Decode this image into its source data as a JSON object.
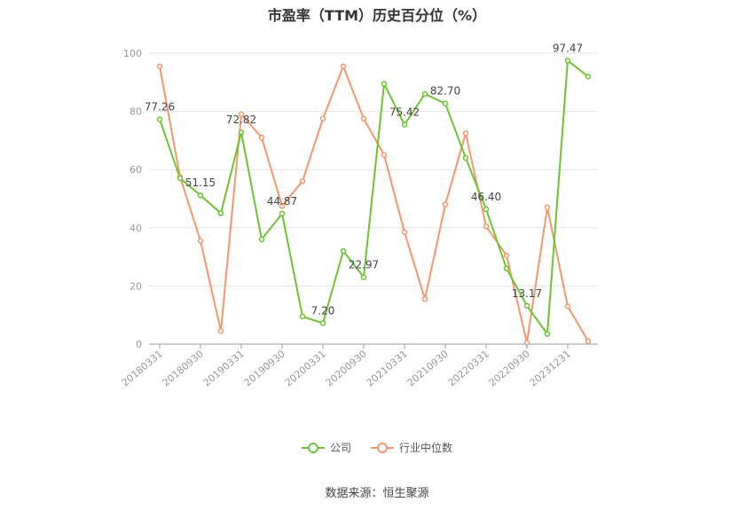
{
  "title": "市盈率（TTM）历史百分位（%）",
  "source": "数据来源：恒生聚源",
  "chart_data": {
    "type": "line",
    "title": "市盈率（TTM）历史百分位（%）",
    "ylim": [
      0,
      100
    ],
    "yticks": [
      0,
      20,
      40,
      60,
      80,
      100
    ],
    "x_tick_labels": [
      "20180331",
      "20180930",
      "20190331",
      "20190930",
      "20200331",
      "20200930",
      "20210331",
      "20210930",
      "20220331",
      "20220930",
      "20231231"
    ],
    "x": [
      "20180331",
      "20180630",
      "20180930",
      "20181231",
      "20190331",
      "20190630",
      "20190930",
      "20191231",
      "20200331",
      "20200630",
      "20200930",
      "20201231",
      "20210331",
      "20210630",
      "20210930",
      "20211231",
      "20220331",
      "20220630",
      "20220930",
      "20221231",
      "20231231",
      "20240331"
    ],
    "grid": true,
    "legend_position": "bottom",
    "series": [
      {
        "name": "公司",
        "color": "#6bc530",
        "values": [
          77.26,
          57.0,
          51.15,
          45.0,
          72.82,
          36.0,
          44.87,
          9.5,
          7.2,
          32.0,
          22.97,
          89.5,
          75.42,
          86.0,
          82.7,
          64.0,
          46.4,
          26.0,
          13.17,
          3.5,
          97.47,
          92.0
        ],
        "labels": [
          "77.26",
          "",
          "51.15",
          "",
          "72.82",
          "",
          "44.87",
          "",
          "7.20",
          "",
          "22.97",
          "",
          "75.42",
          "",
          "82.70",
          "",
          "46.40",
          "",
          "13.17",
          "",
          "97.47",
          ""
        ]
      },
      {
        "name": "行业中位数",
        "color": "#f5976b",
        "values": [
          95.5,
          57.5,
          35.5,
          4.5,
          79.0,
          71.0,
          47.5,
          56.0,
          77.5,
          95.5,
          77.5,
          65.0,
          38.5,
          15.5,
          48.0,
          72.5,
          40.5,
          30.5,
          0.5,
          47.0,
          13.0,
          1.0
        ]
      }
    ]
  }
}
